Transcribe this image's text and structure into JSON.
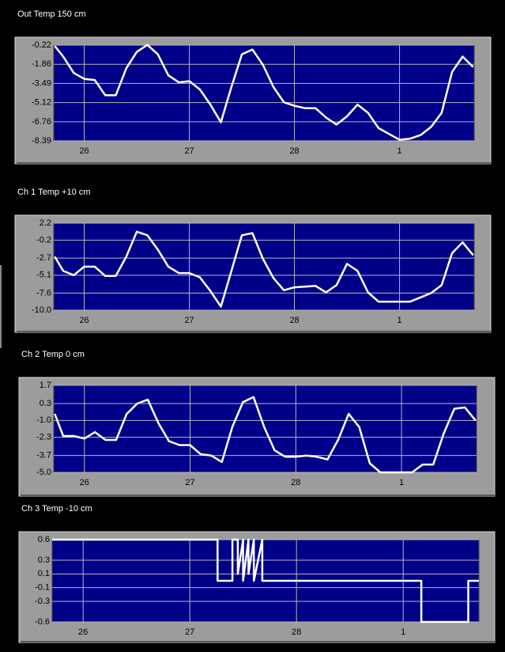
{
  "chart_data": [
    {
      "type": "line",
      "title": "Out Temp 150 cm",
      "x": [
        25.72,
        25.8,
        25.9,
        26.0,
        26.1,
        26.2,
        26.3,
        26.4,
        26.5,
        26.6,
        26.7,
        26.8,
        26.9,
        27.0,
        27.1,
        27.2,
        27.3,
        27.4,
        27.5,
        27.6,
        27.7,
        27.8,
        27.9,
        28.0,
        28.1,
        28.2,
        28.3,
        28.4,
        28.5,
        28.6,
        28.7,
        28.8,
        28.9,
        29.0,
        29.1,
        29.2,
        29.3,
        29.4,
        29.5,
        29.6,
        29.7
      ],
      "series": [
        {
          "color": "#ffffff",
          "values": [
            -0.3,
            -1.2,
            -2.6,
            -3.1,
            -3.2,
            -4.5,
            -4.5,
            -2.2,
            -0.8,
            -0.2,
            -1.0,
            -2.8,
            -3.4,
            -3.3,
            -4.0,
            -5.3,
            -6.8,
            -3.8,
            -1.0,
            -0.6,
            -1.9,
            -3.8,
            -5.1,
            -5.4,
            -5.6,
            -5.6,
            -6.4,
            -7.0,
            -6.3,
            -5.3,
            -6.0,
            -7.3,
            -7.8,
            -8.3,
            -8.2,
            -7.9,
            -7.2,
            -6.0,
            -2.5,
            -1.2,
            -2.1
          ]
        }
      ],
      "xlim": [
        25.71,
        29.71
      ],
      "xticks": [
        26,
        27,
        28,
        {
          "value": 29,
          "label": "1"
        }
      ],
      "ylim": [
        -8.39,
        -0.22
      ],
      "yticks": [
        -0.22,
        -1.86,
        -3.49,
        -5.12,
        -6.76,
        -8.39
      ],
      "grid": true
    },
    {
      "type": "line",
      "title": "Ch 1 Temp +10 cm",
      "x": [
        25.72,
        25.8,
        25.9,
        26.0,
        26.1,
        26.2,
        26.3,
        26.4,
        26.5,
        26.6,
        26.7,
        26.8,
        26.9,
        27.0,
        27.1,
        27.2,
        27.3,
        27.4,
        27.5,
        27.6,
        27.7,
        27.8,
        27.9,
        28.0,
        28.1,
        28.2,
        28.3,
        28.4,
        28.5,
        28.6,
        28.7,
        28.8,
        28.9,
        29.0,
        29.1,
        29.2,
        29.3,
        29.4,
        29.5,
        29.6,
        29.7
      ],
      "series": [
        {
          "color": "#ffffff",
          "values": [
            -2.5,
            -4.5,
            -5.1,
            -3.9,
            -3.9,
            -5.2,
            -5.2,
            -2.5,
            1.0,
            0.5,
            -1.5,
            -3.9,
            -4.8,
            -4.8,
            -5.4,
            -7.3,
            -9.5,
            -4.5,
            0.5,
            0.8,
            -2.8,
            -5.5,
            -7.2,
            -6.8,
            -6.7,
            -6.6,
            -7.5,
            -6.5,
            -3.5,
            -4.5,
            -7.5,
            -8.8,
            -8.8,
            -8.8,
            -8.8,
            -8.2,
            -7.6,
            -6.5,
            -2.0,
            -0.5,
            -2.3
          ]
        }
      ],
      "xlim": [
        25.71,
        29.71
      ],
      "xticks": [
        26,
        27,
        28,
        {
          "value": 29,
          "label": "1"
        }
      ],
      "ylim": [
        -10,
        2.2
      ],
      "yticks": [
        2.2,
        -0.2,
        -2.7,
        -5.1,
        -7.6,
        {
          "value": -10,
          "label": "-10.0"
        }
      ],
      "grid": true
    },
    {
      "type": "line",
      "title": "Ch 2 Temp 0 cm",
      "x": [
        25.72,
        25.8,
        25.9,
        26.0,
        26.1,
        26.2,
        26.3,
        26.4,
        26.5,
        26.6,
        26.7,
        26.8,
        26.9,
        27.0,
        27.1,
        27.2,
        27.3,
        27.4,
        27.5,
        27.6,
        27.7,
        27.8,
        27.9,
        28.0,
        28.1,
        28.2,
        28.3,
        28.4,
        28.5,
        28.6,
        28.7,
        28.8,
        28.9,
        29.0,
        29.1,
        29.2,
        29.3,
        29.4,
        29.5,
        29.6,
        29.7
      ],
      "series": [
        {
          "color": "#ffffff",
          "values": [
            -0.5,
            -2.2,
            -2.2,
            -2.4,
            -1.9,
            -2.5,
            -2.5,
            -0.5,
            0.3,
            0.6,
            -1.2,
            -2.6,
            -2.9,
            -2.9,
            -3.6,
            -3.7,
            -4.2,
            -1.5,
            0.4,
            0.8,
            -1.5,
            -3.3,
            -3.8,
            -3.8,
            -3.7,
            -3.8,
            -4.0,
            -2.5,
            -0.5,
            -1.5,
            -4.3,
            -5.0,
            -5.0,
            -5.0,
            -5.0,
            -4.4,
            -4.4,
            -2.0,
            -0.1,
            0.0,
            -1.0
          ]
        }
      ],
      "xlim": [
        25.71,
        29.71
      ],
      "xticks": [
        26,
        27,
        28,
        {
          "value": 29,
          "label": "1"
        }
      ],
      "ylim": [
        -5,
        1.7
      ],
      "yticks": [
        1.7,
        0.3,
        {
          "value": -1,
          "label": "-1.0"
        },
        -2.3,
        -3.7,
        {
          "value": -5,
          "label": "-5.0"
        }
      ],
      "grid": true
    },
    {
      "type": "line",
      "title": "Ch 3 Temp -10 cm",
      "x": [
        25.71,
        27.26,
        27.26,
        27.4,
        27.4,
        27.45,
        27.45,
        27.5,
        27.5,
        27.55,
        27.55,
        27.6,
        27.6,
        27.68,
        27.68,
        29.17,
        29.17,
        29.61,
        29.61,
        29.71
      ],
      "series": [
        {
          "color": "#ffffff",
          "values": [
            0.6,
            0.6,
            0,
            0,
            0.6,
            0.6,
            0.1,
            0.6,
            0,
            0.6,
            0.1,
            0.6,
            0,
            0.6,
            0,
            0,
            -0.6,
            -0.6,
            0,
            0
          ]
        }
      ],
      "xlim": [
        25.71,
        29.71
      ],
      "xticks": [
        26,
        27,
        28,
        {
          "value": 29,
          "label": "1"
        }
      ],
      "ylim": [
        -0.6,
        0.6
      ],
      "yticks": [
        0.6,
        0.3,
        0.1,
        -0.1,
        -0.3,
        -0.6
      ],
      "grid": true
    }
  ]
}
